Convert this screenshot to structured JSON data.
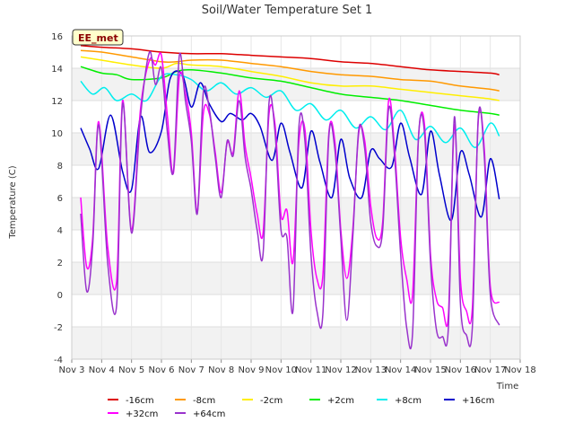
{
  "chart_data": {
    "type": "line",
    "title": "Soil/Water Temperature Set 1",
    "xlabel": "Time",
    "ylabel": "Temperature (C)",
    "badge": "EE_met",
    "x_ticks": [
      "Nov 3",
      "Nov 4",
      "Nov 5",
      "Nov 6",
      "Nov 7",
      "Nov 8",
      "Nov 9",
      "Nov 10",
      "Nov 11",
      "Nov 12",
      "Nov 13",
      "Nov 14",
      "Nov 15",
      "Nov 16",
      "Nov 17",
      "Nov 18"
    ],
    "y_ticks": [
      -4,
      -2,
      0,
      2,
      4,
      6,
      8,
      10,
      12,
      14,
      16
    ],
    "ylim": [
      -4,
      16
    ],
    "xlim": [
      3,
      18
    ],
    "grid": true,
    "legend_position": "bottom",
    "series": [
      {
        "name": "-16cm",
        "color": "#dd0000",
        "x": [
          3.3,
          4,
          5,
          6,
          7,
          8,
          9,
          10,
          11,
          12,
          13,
          14,
          15,
          16,
          17,
          17.3
        ],
        "y": [
          15.4,
          15.3,
          15.2,
          15.0,
          14.9,
          14.9,
          14.8,
          14.7,
          14.6,
          14.4,
          14.3,
          14.1,
          13.9,
          13.8,
          13.7,
          13.6
        ]
      },
      {
        "name": "-8cm",
        "color": "#ff9900",
        "x": [
          3.3,
          4,
          5,
          6,
          6.5,
          7,
          8,
          9,
          10,
          11,
          12,
          13,
          14,
          15,
          16,
          17,
          17.3
        ],
        "y": [
          15.1,
          15.0,
          14.7,
          14.4,
          14.4,
          14.5,
          14.5,
          14.3,
          14.1,
          13.8,
          13.6,
          13.5,
          13.3,
          13.2,
          12.9,
          12.7,
          12.6
        ]
      },
      {
        "name": "-2cm",
        "color": "#ffee00",
        "x": [
          3.3,
          4,
          5,
          6,
          6.5,
          7,
          8,
          9,
          10,
          11,
          12,
          13,
          14,
          15,
          16,
          17,
          17.3
        ],
        "y": [
          14.7,
          14.5,
          14.2,
          14.0,
          14.3,
          14.2,
          14.1,
          13.8,
          13.5,
          13.1,
          12.9,
          12.9,
          12.7,
          12.5,
          12.3,
          12.1,
          12.0
        ]
      },
      {
        "name": "+2cm",
        "color": "#00ee00",
        "x": [
          3.3,
          4,
          4.5,
          5,
          6,
          6.5,
          7,
          8,
          9,
          10,
          11,
          12,
          13,
          14,
          15,
          16,
          17,
          17.3
        ],
        "y": [
          14.1,
          13.7,
          13.6,
          13.3,
          13.4,
          13.8,
          13.9,
          13.7,
          13.4,
          13.2,
          12.8,
          12.4,
          12.2,
          12.0,
          11.7,
          11.4,
          11.2,
          11.1
        ]
      },
      {
        "name": "+8cm",
        "color": "#00eeee",
        "x": [
          3.3,
          3.7,
          4.1,
          4.5,
          5.0,
          5.5,
          6.0,
          6.5,
          7.0,
          7.5,
          8.0,
          8.5,
          9.0,
          9.5,
          10.0,
          10.5,
          11.0,
          11.5,
          12.0,
          12.5,
          13.0,
          13.5,
          14.0,
          14.5,
          15.0,
          15.5,
          16.0,
          16.5,
          17.0,
          17.3
        ],
        "y": [
          13.2,
          12.4,
          12.8,
          12.0,
          12.4,
          12.0,
          13.5,
          13.6,
          13.3,
          12.6,
          13.1,
          12.4,
          12.8,
          12.2,
          12.6,
          11.4,
          11.8,
          10.8,
          11.4,
          10.3,
          11.0,
          10.2,
          11.4,
          9.6,
          10.4,
          9.4,
          10.3,
          9.1,
          10.6,
          9.8
        ]
      },
      {
        "name": "+16cm",
        "color": "#0000cc",
        "x": [
          3.3,
          3.6,
          3.9,
          4.3,
          4.7,
          5.0,
          5.3,
          5.6,
          6.0,
          6.3,
          6.7,
          7.0,
          7.3,
          7.6,
          8.0,
          8.3,
          8.7,
          9.0,
          9.3,
          9.7,
          10.0,
          10.3,
          10.7,
          11.0,
          11.3,
          11.7,
          12.0,
          12.3,
          12.7,
          13.0,
          13.3,
          13.7,
          14.0,
          14.3,
          14.7,
          15.0,
          15.3,
          15.7,
          16.0,
          16.3,
          16.7,
          17.0,
          17.3
        ],
        "y": [
          10.3,
          9.0,
          7.8,
          11.1,
          7.6,
          6.5,
          11.0,
          8.8,
          10.1,
          13.4,
          13.6,
          11.6,
          13.1,
          11.8,
          10.7,
          11.2,
          10.8,
          11.2,
          10.4,
          8.3,
          10.6,
          8.8,
          6.6,
          10.1,
          8.2,
          6.0,
          9.6,
          7.2,
          6.0,
          8.9,
          8.4,
          7.9,
          10.6,
          8.5,
          6.2,
          10.1,
          7.4,
          4.6,
          8.8,
          7.4,
          4.8,
          8.4,
          5.9
        ]
      },
      {
        "name": "+32cm",
        "color": "#ff00ff",
        "x": [
          3.3,
          3.5,
          3.7,
          3.9,
          4.2,
          4.5,
          4.7,
          5.0,
          5.3,
          5.6,
          5.8,
          6.0,
          6.2,
          6.4,
          6.6,
          6.8,
          7.0,
          7.2,
          7.4,
          7.6,
          7.8,
          8.0,
          8.2,
          8.4,
          8.6,
          8.8,
          9.0,
          9.2,
          9.4,
          9.6,
          9.8,
          10.0,
          10.2,
          10.4,
          10.6,
          10.8,
          11.0,
          11.2,
          11.4,
          11.6,
          11.8,
          12.0,
          12.2,
          12.4,
          12.6,
          12.8,
          13.0,
          13.2,
          13.4,
          13.6,
          13.8,
          14.0,
          14.2,
          14.4,
          14.6,
          14.8,
          15.0,
          15.2,
          15.4,
          15.6,
          15.8,
          16.0,
          16.2,
          16.4,
          16.6,
          16.8,
          17.0,
          17.3
        ],
        "y": [
          6.0,
          1.7,
          3.5,
          10.7,
          3.0,
          0.8,
          12.0,
          4.0,
          11.5,
          14.5,
          14.2,
          14.8,
          11.0,
          7.5,
          13.5,
          12.5,
          10.0,
          5.1,
          11.2,
          11.2,
          8.8,
          6.3,
          9.4,
          8.8,
          12.6,
          9.2,
          7.2,
          5.0,
          3.8,
          11.2,
          10.5,
          4.9,
          5.2,
          2.0,
          9.5,
          10.2,
          4.0,
          1.0,
          1.2,
          10.0,
          9.5,
          4.0,
          1.0,
          4.0,
          10.0,
          9.5,
          5.5,
          3.5,
          4.5,
          12.0,
          9.0,
          3.5,
          1.0,
          0.0,
          9.8,
          10.5,
          2.5,
          -0.3,
          -0.8,
          -1.2,
          10.5,
          1.0,
          -1.0,
          -0.8,
          10.8,
          9.0,
          0.5,
          -0.5
        ]
      },
      {
        "name": "+64cm",
        "color": "#9933cc",
        "x": [
          3.3,
          3.5,
          3.7,
          3.9,
          4.2,
          4.5,
          4.7,
          5.0,
          5.3,
          5.6,
          5.8,
          6.0,
          6.2,
          6.4,
          6.6,
          6.8,
          7.0,
          7.2,
          7.4,
          7.6,
          7.8,
          8.0,
          8.2,
          8.4,
          8.6,
          8.8,
          9.0,
          9.2,
          9.4,
          9.6,
          9.8,
          10.0,
          10.2,
          10.4,
          10.6,
          10.8,
          11.0,
          11.2,
          11.4,
          11.6,
          11.8,
          12.0,
          12.2,
          12.4,
          12.6,
          12.8,
          13.0,
          13.2,
          13.4,
          13.6,
          13.8,
          14.0,
          14.2,
          14.4,
          14.6,
          14.8,
          15.0,
          15.2,
          15.4,
          15.6,
          15.8,
          16.0,
          16.2,
          16.4,
          16.6,
          16.8,
          17.0,
          17.3
        ],
        "y": [
          5.0,
          0.2,
          3.0,
          10.5,
          2.0,
          -0.7,
          11.8,
          3.8,
          11.0,
          15.0,
          13.0,
          14.0,
          10.0,
          7.6,
          14.8,
          12.0,
          9.5,
          5.0,
          12.5,
          11.5,
          8.5,
          6.0,
          9.5,
          8.6,
          12.0,
          8.5,
          6.5,
          4.0,
          2.5,
          11.9,
          10.0,
          4.0,
          3.5,
          -1.0,
          10.4,
          9.5,
          2.5,
          -1.0,
          -1.2,
          9.8,
          9.0,
          3.5,
          -1.6,
          3.5,
          10.2,
          9.0,
          4.5,
          3.0,
          4.0,
          11.5,
          8.5,
          2.5,
          -2.0,
          -2.4,
          9.8,
          10.0,
          2.0,
          -2.2,
          -2.6,
          -2.0,
          11.0,
          -0.5,
          -2.5,
          -2.0,
          11.0,
          8.5,
          0.0,
          -1.9
        ]
      }
    ]
  }
}
